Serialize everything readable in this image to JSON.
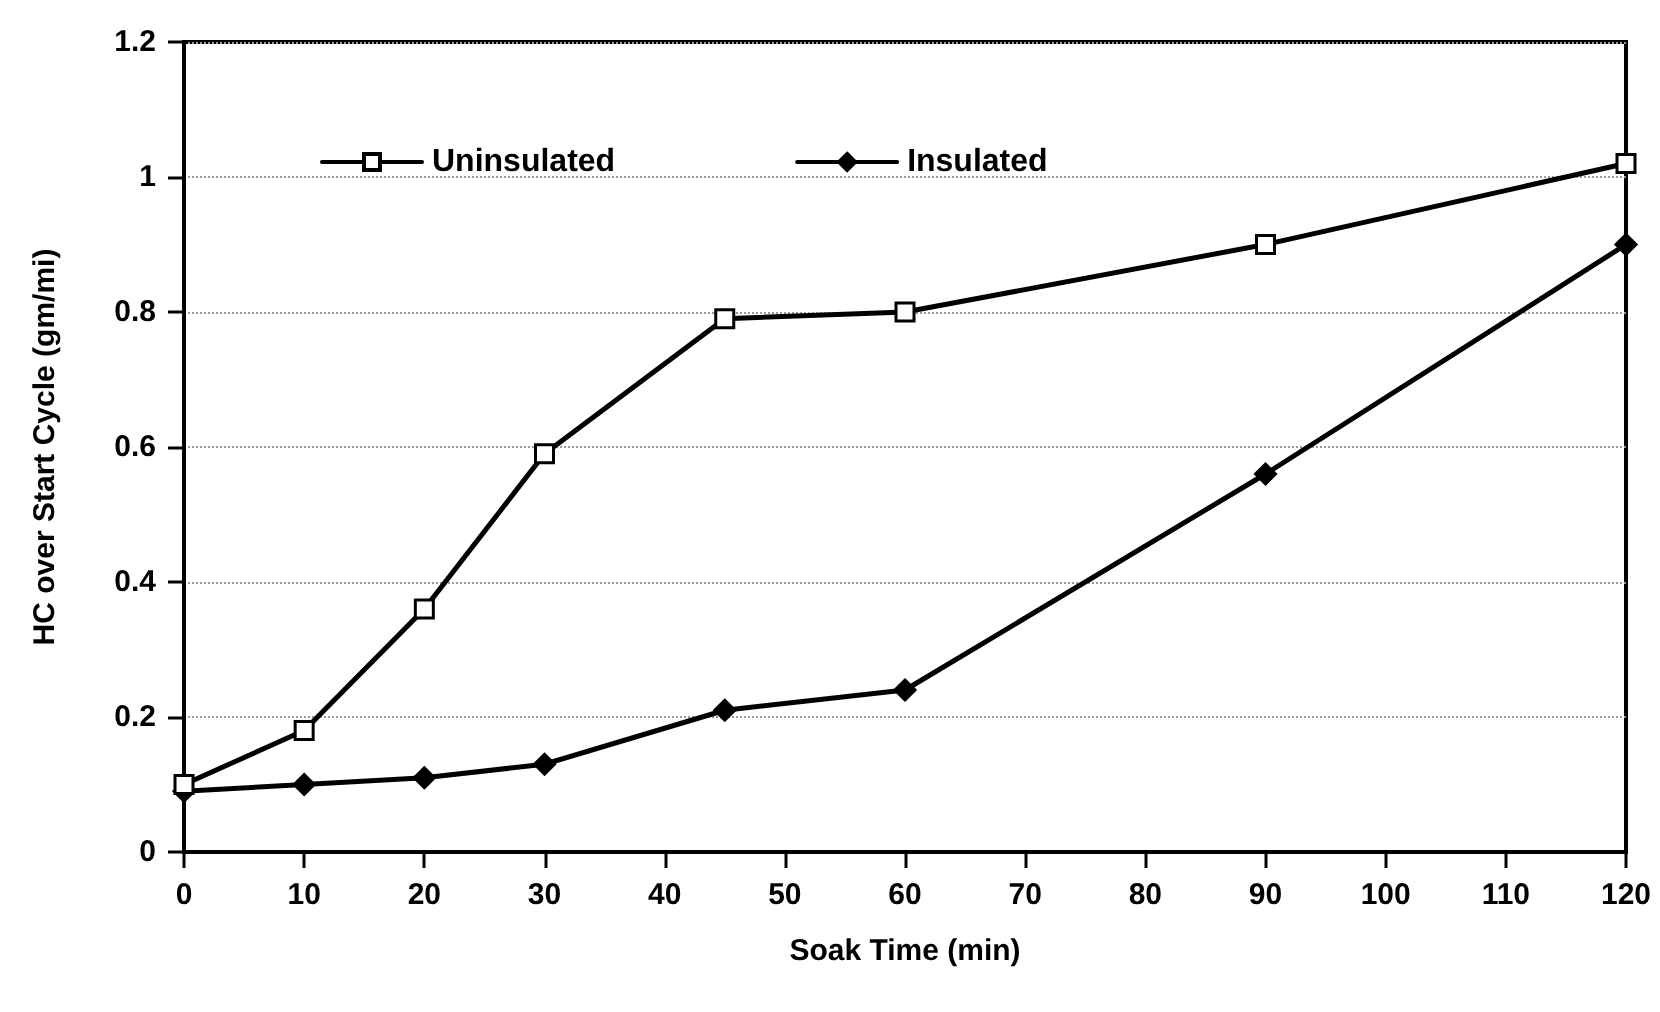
{
  "chart_data": {
    "type": "line",
    "xlabel": "Soak Time (min)",
    "ylabel": "HC over Start Cycle (gm/mi)",
    "x": [
      0,
      10,
      20,
      30,
      45,
      60,
      90,
      120
    ],
    "series": [
      {
        "name": "Uninsulated",
        "color": "#000000",
        "marker": "square",
        "values": [
          0.1,
          0.18,
          0.36,
          0.59,
          0.79,
          0.8,
          0.9,
          1.02
        ]
      },
      {
        "name": "Insulated",
        "color": "#000000",
        "marker": "diamond",
        "values": [
          0.09,
          0.1,
          0.11,
          0.13,
          0.21,
          0.24,
          0.56,
          0.9
        ]
      }
    ],
    "xlim": [
      0,
      120
    ],
    "xticks": [
      0,
      10,
      20,
      30,
      40,
      50,
      60,
      70,
      80,
      90,
      100,
      110,
      120
    ],
    "ylim": [
      0,
      1.2
    ],
    "yticks": [
      0,
      0.2,
      0.4,
      0.6,
      0.8,
      1,
      1.2
    ],
    "grid": "y",
    "legend": "top left",
    "line_style": "solid"
  }
}
